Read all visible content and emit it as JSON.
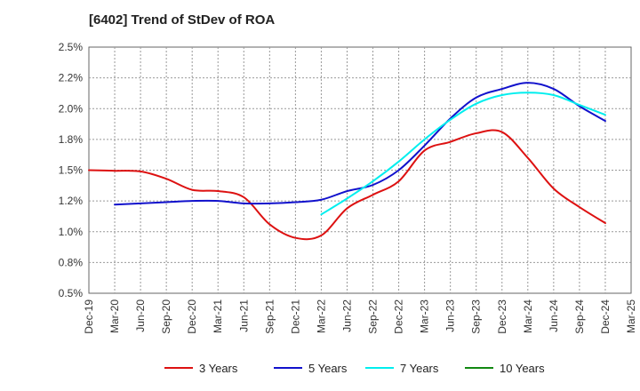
{
  "chart_data": {
    "type": "line",
    "title": "[6402]  Trend of StDev of ROA",
    "xlabel": "",
    "ylabel": "",
    "categories": [
      "Dec-19",
      "Mar-20",
      "Jun-20",
      "Sep-20",
      "Dec-20",
      "Mar-21",
      "Jun-21",
      "Sep-21",
      "Dec-21",
      "Mar-22",
      "Jun-22",
      "Sep-22",
      "Dec-22",
      "Mar-23",
      "Jun-23",
      "Sep-23",
      "Dec-23",
      "Mar-24",
      "Jun-24",
      "Sep-24",
      "Dec-24",
      "Mar-25"
    ],
    "y_tick_labels": [
      "0.5%",
      "0.8%",
      "1.0%",
      "1.2%",
      "1.5%",
      "1.8%",
      "2.0%",
      "2.2%",
      "2.5%"
    ],
    "ylim": [
      0.5,
      2.5
    ],
    "grid": true,
    "legend_position": "bottom",
    "series": [
      {
        "name": "3 Years",
        "color": "#dd1111",
        "values": [
          1.5,
          1.495,
          1.49,
          1.43,
          1.34,
          1.33,
          1.28,
          1.06,
          0.95,
          0.97,
          1.19,
          1.3,
          1.41,
          1.66,
          1.73,
          1.8,
          1.81,
          1.6,
          1.35,
          1.2,
          1.07,
          null
        ]
      },
      {
        "name": "5 Years",
        "color": "#1111cc",
        "values": [
          null,
          1.22,
          1.23,
          1.24,
          1.25,
          1.25,
          1.23,
          1.23,
          1.24,
          1.26,
          1.33,
          1.38,
          1.5,
          1.7,
          1.92,
          2.09,
          2.16,
          2.21,
          2.16,
          2.02,
          1.9,
          null
        ]
      },
      {
        "name": "7 Years",
        "color": "#00eeee",
        "values": [
          null,
          null,
          null,
          null,
          null,
          null,
          null,
          null,
          null,
          1.14,
          1.27,
          1.41,
          1.57,
          1.75,
          1.91,
          2.04,
          2.11,
          2.13,
          2.11,
          2.03,
          1.95,
          null
        ]
      },
      {
        "name": "10 Years",
        "color": "#118811",
        "values": [
          null,
          null,
          null,
          null,
          null,
          null,
          null,
          null,
          null,
          null,
          null,
          null,
          null,
          null,
          null,
          null,
          null,
          null,
          null,
          null,
          null,
          null
        ]
      }
    ]
  }
}
